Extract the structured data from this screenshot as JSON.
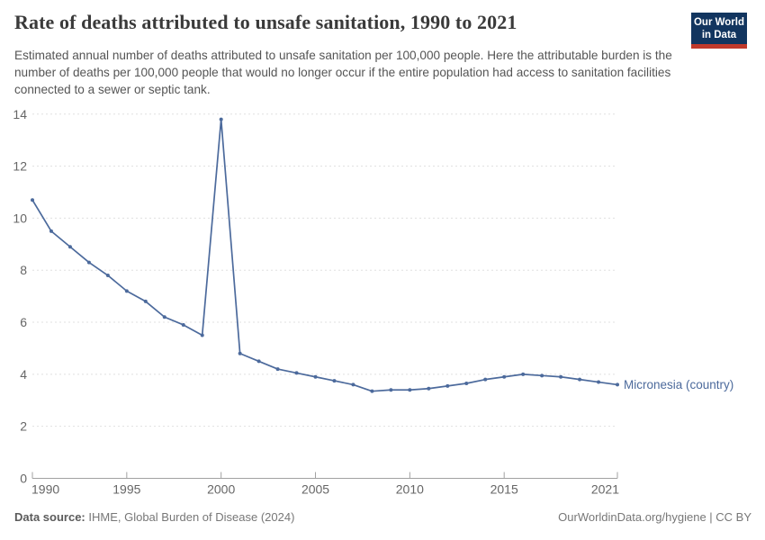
{
  "header": {
    "title": "Rate of deaths attributed to unsafe sanitation, 1990 to 2021",
    "subtitle": "Estimated annual number of deaths attributed to unsafe sanitation per 100,000 people. Here the attributable burden is the number of deaths per 100,000 people that would no longer occur if the entire population had access to sanitation facilities connected to a sewer or septic tank."
  },
  "logo": {
    "line1": "Our World",
    "line2": "in Data",
    "bg_color": "#12355f",
    "accent_color": "#c0392b"
  },
  "footer": {
    "source_label": "Data source:",
    "source_text": " IHME, Global Burden of Disease (2024)",
    "right_text": "OurWorldinData.org/hygiene | CC BY"
  },
  "chart_data": {
    "type": "line",
    "title": "Rate of deaths attributed to unsafe sanitation, 1990 to 2021",
    "xlabel": "",
    "ylabel": "",
    "xlim": [
      1990,
      2021
    ],
    "ylim": [
      0,
      14
    ],
    "xticks": [
      1990,
      1995,
      2000,
      2005,
      2010,
      2015,
      2021
    ],
    "yticks": [
      0,
      2,
      4,
      6,
      8,
      10,
      12,
      14
    ],
    "grid": "horizontal-dashed",
    "legend_position": "end-of-line-label",
    "x": [
      1990,
      1991,
      1992,
      1993,
      1994,
      1995,
      1996,
      1997,
      1998,
      1999,
      2000,
      2001,
      2002,
      2003,
      2004,
      2005,
      2006,
      2007,
      2008,
      2009,
      2010,
      2011,
      2012,
      2013,
      2014,
      2015,
      2016,
      2017,
      2018,
      2019,
      2020,
      2021
    ],
    "series": [
      {
        "name": "Micronesia (country)",
        "color": "#4c6a9c",
        "values": [
          10.7,
          9.5,
          8.9,
          8.3,
          7.8,
          7.2,
          6.8,
          6.2,
          5.9,
          5.5,
          13.8,
          4.8,
          4.5,
          4.2,
          4.05,
          3.9,
          3.75,
          3.6,
          3.35,
          3.4,
          3.4,
          3.45,
          3.55,
          3.65,
          3.8,
          3.9,
          4.0,
          3.95,
          3.9,
          3.8,
          3.7,
          3.6
        ]
      }
    ]
  }
}
